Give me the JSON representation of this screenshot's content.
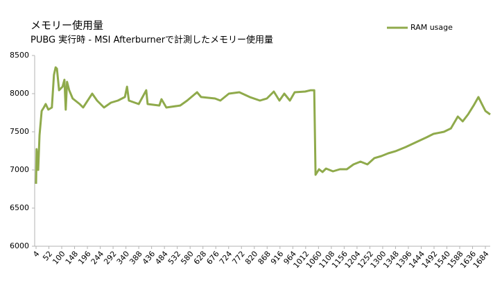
{
  "chart_data": {
    "type": "line",
    "title": "メモリー使用量",
    "subtitle": "PUBG 実行時  - MSI Afterburnerで計測したメモリー使用量",
    "x": [
      4,
      6,
      12,
      17,
      25,
      33,
      40,
      50,
      63,
      71,
      77,
      82,
      90,
      103,
      110,
      115,
      120,
      128,
      141,
      167,
      180,
      214,
      232,
      258,
      284,
      310,
      336,
      344,
      351,
      388,
      416,
      421,
      465,
      473,
      491,
      543,
      569,
      606,
      621,
      673,
      693,
      725,
      764,
      803,
      841,
      867,
      893,
      914,
      932,
      953,
      971,
      1010,
      1031,
      1044,
      1049,
      1062,
      1075,
      1088,
      1114,
      1140,
      1166,
      1191,
      1217,
      1243,
      1269,
      1295,
      1321,
      1347,
      1386,
      1425,
      1464,
      1490,
      1529,
      1555,
      1581,
      1599,
      1619,
      1640,
      1658,
      1671,
      1684,
      1702
    ],
    "series": [
      {
        "name": "RAM usage",
        "color": "#8faa4b",
        "values": [
          6818,
          7273,
          7000,
          7455,
          7773,
          7818,
          7864,
          7791,
          7818,
          8245,
          8345,
          8327,
          8045,
          8091,
          8182,
          7791,
          8155,
          8045,
          7936,
          7864,
          7818,
          8000,
          7909,
          7818,
          7882,
          7909,
          7955,
          8091,
          7909,
          7864,
          8045,
          7864,
          7845,
          7927,
          7818,
          7845,
          7909,
          8018,
          7955,
          7936,
          7909,
          8000,
          8018,
          7955,
          7909,
          7936,
          8027,
          7909,
          8000,
          7909,
          8018,
          8027,
          8045,
          8045,
          6936,
          7009,
          6973,
          7018,
          6982,
          7009,
          7009,
          7073,
          7109,
          7073,
          7155,
          7182,
          7218,
          7245,
          7300,
          7364,
          7427,
          7473,
          7500,
          7545,
          7700,
          7636,
          7727,
          7845,
          7955,
          7864,
          7773,
          7727
        ]
      }
    ],
    "xlim": [
      4,
      1702
    ],
    "xticks": [
      4,
      52,
      100,
      148,
      196,
      244,
      292,
      340,
      388,
      436,
      484,
      532,
      580,
      628,
      676,
      724,
      772,
      820,
      868,
      916,
      964,
      1012,
      1060,
      1108,
      1156,
      1204,
      1252,
      1300,
      1348,
      1396,
      1444,
      1492,
      1540,
      1588,
      1636,
      1684
    ],
    "ylim": [
      6000,
      8500
    ],
    "yticks": [
      6000,
      6500,
      7000,
      7500,
      8000,
      8500
    ],
    "legend": "top-right"
  }
}
